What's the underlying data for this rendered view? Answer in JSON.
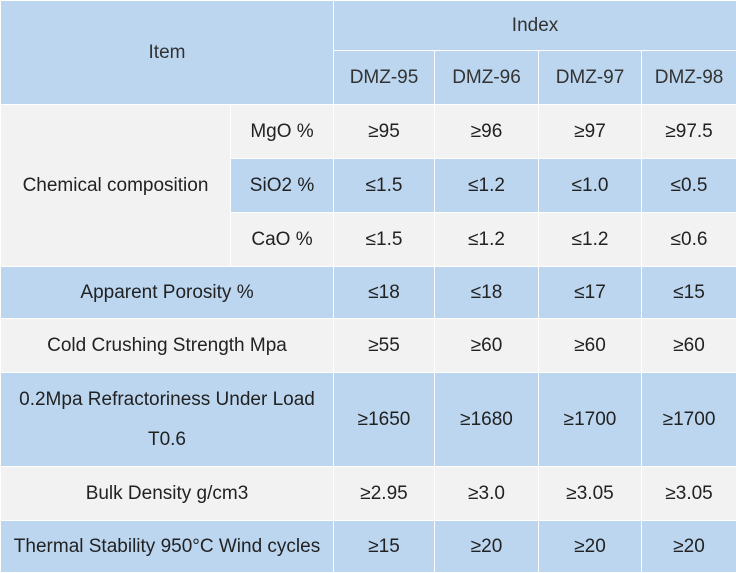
{
  "header": {
    "item_label": "Item",
    "index_label": "Index",
    "grades": [
      "DMZ-95",
      "DMZ-96",
      "DMZ-97",
      "DMZ-98"
    ]
  },
  "chemical": {
    "label": "Chemical composition",
    "rows": [
      {
        "name": "MgO %",
        "values": [
          "≥95",
          "≥96",
          "≥97",
          "≥97.5"
        ]
      },
      {
        "name": "SiO2 %",
        "values": [
          "≤1.5",
          "≤1.2",
          "≤1.0",
          "≤0.5"
        ]
      },
      {
        "name": "CaO %",
        "values": [
          "≤1.5",
          "≤1.2",
          "≤1.2",
          "≤0.6"
        ]
      }
    ]
  },
  "rows": [
    {
      "name": "Apparent Porosity %",
      "values": [
        "≤18",
        "≤18",
        "≤17",
        "≤15"
      ]
    },
    {
      "name": "Cold Crushing Strength Mpa",
      "values": [
        "≥55",
        "≥60",
        "≥60",
        "≥60"
      ]
    },
    {
      "name": "0.2Mpa Refractoriness Under Load T0.6",
      "values": [
        "≥1650",
        "≥1680",
        "≥1700",
        "≥1700"
      ]
    },
    {
      "name": "Bulk Density g/cm3",
      "values": [
        "≥2.95",
        "≥3.0",
        "≥3.05",
        "≥3.05"
      ]
    },
    {
      "name": "Thermal Stability 950°C Wind cycles",
      "values": [
        "≥15",
        "≥20",
        "≥20",
        "≥20"
      ]
    }
  ],
  "colors": {
    "header_blue": "#bcd6f0",
    "row_grey": "#f2f2f2",
    "border": "#ffffff"
  }
}
